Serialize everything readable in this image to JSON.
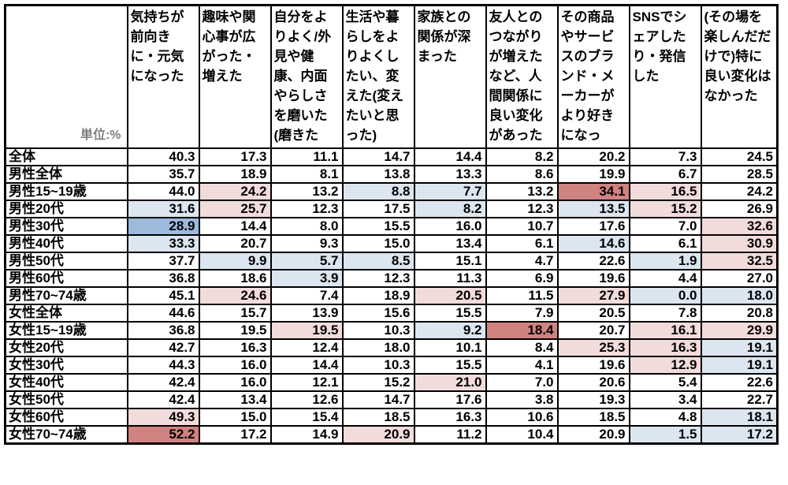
{
  "chart_data": {
    "type": "heatmap",
    "title": "",
    "unit_label": "単位:%",
    "highlight_colors": {
      "light_blue": "#dce6f1",
      "medium_blue": "#9db9dc",
      "light_pink": "#f2dcdb",
      "medium_red": "#d08280"
    },
    "columns": [
      "気持ちが前向きに・元気になった",
      "趣味や関心事が広がった・増えた",
      "自分をよりよく/外見や健康、内面やらしさを磨いた(磨きた",
      "生活や暮らしをよりよくしたい、変えた(変えたいと思った)",
      "家族との関係が深まった",
      "友人とのつながりが増えたなど、人間関係に良い変化があった",
      "その商品やサービスのブランド・メーカーがより好きになっ",
      "SNSでシェアしたり・発信した",
      "(その場を楽しんだだけで)特に良い変化はなかった"
    ],
    "rows": [
      {
        "label": "全体",
        "values": [
          40.3,
          17.3,
          11.1,
          14.7,
          14.4,
          8.2,
          20.2,
          7.3,
          24.5
        ],
        "highlights": [
          null,
          null,
          null,
          null,
          null,
          null,
          null,
          null,
          null
        ]
      },
      {
        "label": "男性全体",
        "values": [
          35.7,
          18.9,
          8.1,
          13.8,
          13.3,
          8.6,
          19.9,
          6.7,
          28.5
        ],
        "highlights": [
          null,
          null,
          null,
          null,
          null,
          null,
          null,
          null,
          null
        ]
      },
      {
        "label": "男性15~19歳",
        "values": [
          44.0,
          24.2,
          13.2,
          8.8,
          7.7,
          13.2,
          34.1,
          16.5,
          24.2
        ],
        "highlights": [
          null,
          "light_pink",
          null,
          "light_blue",
          "light_blue",
          null,
          "medium_red",
          "light_pink",
          null
        ]
      },
      {
        "label": "男性20代",
        "values": [
          31.6,
          25.7,
          12.3,
          17.5,
          8.2,
          12.3,
          13.5,
          15.2,
          26.9
        ],
        "highlights": [
          "light_blue",
          "light_pink",
          null,
          null,
          "light_blue",
          null,
          "light_blue",
          "light_pink",
          null
        ]
      },
      {
        "label": "男性30代",
        "values": [
          28.9,
          14.4,
          8.0,
          15.5,
          16.0,
          10.7,
          17.6,
          7.0,
          32.6
        ],
        "highlights": [
          "medium_blue",
          null,
          null,
          null,
          null,
          null,
          null,
          null,
          "light_pink"
        ]
      },
      {
        "label": "男性40代",
        "values": [
          33.3,
          20.7,
          9.3,
          15.0,
          13.4,
          6.1,
          14.6,
          6.1,
          30.9
        ],
        "highlights": [
          "light_blue",
          null,
          null,
          null,
          null,
          null,
          "light_blue",
          null,
          "light_pink"
        ]
      },
      {
        "label": "男性50代",
        "values": [
          37.7,
          9.9,
          5.7,
          8.5,
          15.1,
          4.7,
          22.6,
          1.9,
          32.5
        ],
        "highlights": [
          null,
          "light_blue",
          "light_blue",
          "light_blue",
          null,
          null,
          null,
          "light_blue",
          "light_pink"
        ]
      },
      {
        "label": "男性60代",
        "values": [
          36.8,
          18.6,
          3.9,
          12.3,
          11.3,
          6.9,
          19.6,
          4.4,
          27.0
        ],
        "highlights": [
          null,
          null,
          "light_blue",
          null,
          null,
          null,
          null,
          null,
          null
        ]
      },
      {
        "label": "男性70~74歳",
        "values": [
          45.1,
          24.6,
          7.4,
          18.9,
          20.5,
          11.5,
          27.9,
          0.0,
          18.0
        ],
        "highlights": [
          null,
          "light_pink",
          null,
          null,
          "light_pink",
          null,
          "light_pink",
          "light_blue",
          "light_blue"
        ]
      },
      {
        "label": "女性全体",
        "values": [
          44.6,
          15.7,
          13.9,
          15.6,
          15.5,
          7.9,
          20.5,
          7.8,
          20.8
        ],
        "highlights": [
          null,
          null,
          null,
          null,
          null,
          null,
          null,
          null,
          null
        ]
      },
      {
        "label": "女性15~19歳",
        "values": [
          36.8,
          19.5,
          19.5,
          10.3,
          9.2,
          18.4,
          20.7,
          16.1,
          29.9
        ],
        "highlights": [
          null,
          null,
          "light_pink",
          null,
          "light_blue",
          "medium_red",
          null,
          "light_pink",
          "light_pink"
        ]
      },
      {
        "label": "女性20代",
        "values": [
          42.7,
          16.3,
          12.4,
          18.0,
          10.1,
          8.4,
          25.3,
          16.3,
          19.1
        ],
        "highlights": [
          null,
          null,
          null,
          null,
          null,
          null,
          "light_pink",
          "light_pink",
          "light_blue"
        ]
      },
      {
        "label": "女性30代",
        "values": [
          44.3,
          16.0,
          14.4,
          10.3,
          15.5,
          4.1,
          19.6,
          12.9,
          19.1
        ],
        "highlights": [
          null,
          null,
          null,
          null,
          null,
          null,
          null,
          "light_pink",
          "light_blue"
        ]
      },
      {
        "label": "女性40代",
        "values": [
          42.4,
          16.0,
          12.1,
          15.2,
          21.0,
          7.0,
          20.6,
          5.4,
          22.6
        ],
        "highlights": [
          null,
          null,
          null,
          null,
          "light_pink",
          null,
          null,
          null,
          null
        ]
      },
      {
        "label": "女性50代",
        "values": [
          42.4,
          13.4,
          12.6,
          14.7,
          17.6,
          3.8,
          19.3,
          3.4,
          22.7
        ],
        "highlights": [
          null,
          null,
          null,
          null,
          null,
          null,
          null,
          null,
          null
        ]
      },
      {
        "label": "女性60代",
        "values": [
          49.3,
          15.0,
          15.4,
          18.5,
          16.3,
          10.6,
          18.5,
          4.8,
          18.1
        ],
        "highlights": [
          "light_pink",
          null,
          null,
          null,
          null,
          null,
          null,
          null,
          "light_blue"
        ]
      },
      {
        "label": "女性70~74歳",
        "values": [
          52.2,
          17.2,
          14.9,
          20.9,
          11.2,
          10.4,
          20.9,
          1.5,
          17.2
        ],
        "highlights": [
          "medium_red",
          null,
          null,
          "light_pink",
          null,
          null,
          null,
          "light_blue",
          "light_blue"
        ]
      }
    ]
  }
}
